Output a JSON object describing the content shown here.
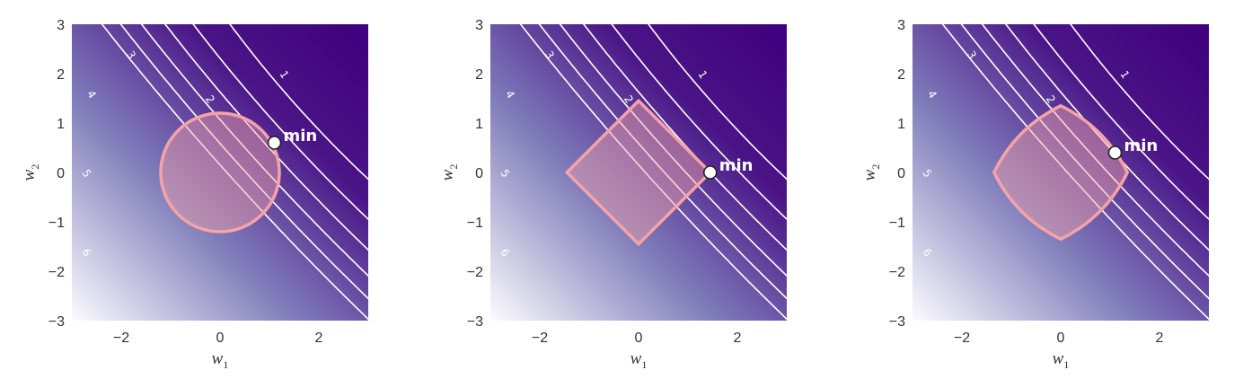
{
  "chart_data": [
    {
      "type": "contour",
      "region": "circle",
      "constraint_shape": "L2 ball (circle)",
      "xlabel": "w",
      "xlabel_sub": "1",
      "ylabel": "w",
      "ylabel_sub": "2",
      "xlim": [
        -3,
        3
      ],
      "ylim": [
        -3,
        3
      ],
      "xticks": [
        -2,
        0,
        2
      ],
      "yticks": [
        -3,
        -2,
        -1,
        0,
        1,
        2,
        3
      ],
      "contour_levels": [
        1,
        2,
        3,
        4,
        5,
        6
      ],
      "min_point": {
        "x": 1.1,
        "y": 0.6,
        "label": "min"
      },
      "region_radius": 1.2
    },
    {
      "type": "contour",
      "region": "diamond",
      "constraint_shape": "L1 ball (diamond)",
      "xlabel": "w",
      "xlabel_sub": "1",
      "ylabel": "w",
      "ylabel_sub": "2",
      "xlim": [
        -3,
        3
      ],
      "ylim": [
        -3,
        3
      ],
      "xticks": [
        -2,
        0,
        2
      ],
      "yticks": [
        -3,
        -2,
        -1,
        0,
        1,
        2,
        3
      ],
      "contour_levels": [
        1,
        2,
        3,
        4,
        5,
        6
      ],
      "min_point": {
        "x": 1.45,
        "y": 0.0,
        "label": "min"
      },
      "region_radius": 1.45
    },
    {
      "type": "contour",
      "region": "elastic",
      "constraint_shape": "Elastic net ball",
      "xlabel": "w",
      "xlabel_sub": "1",
      "ylabel": "w",
      "ylabel_sub": "2",
      "xlim": [
        -3,
        3
      ],
      "ylim": [
        -3,
        3
      ],
      "xticks": [
        -2,
        0,
        2
      ],
      "yticks": [
        -3,
        -2,
        -1,
        0,
        1,
        2,
        3
      ],
      "contour_levels": [
        1,
        2,
        3,
        4,
        5,
        6
      ],
      "min_point": {
        "x": 1.1,
        "y": 0.4,
        "label": "min"
      },
      "region_radius": 1.35
    }
  ],
  "colors": {
    "low": "#3f007d",
    "mid": "#807dba",
    "high": "#fcfbfd",
    "contour": "#ffffff",
    "region_stroke": "#f4a3a8",
    "region_fill": "#f4a3a8"
  }
}
